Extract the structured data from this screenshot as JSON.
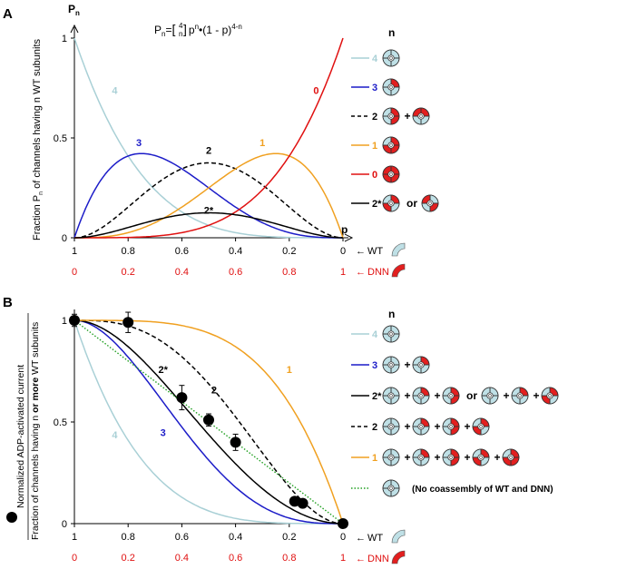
{
  "colors": {
    "c4": "#a9d0d6",
    "c3": "#1c1cc8",
    "c2": "#000000",
    "c1": "#f0a020",
    "c0": "#e01010",
    "c2star": "#000000",
    "green": "#22a022",
    "wt_fill": "#bfe0e6",
    "dnn_fill": "#e21f1f"
  },
  "panel_a": {
    "label": "A",
    "y_axis_symbol": "P",
    "y_axis_symbol_sub": "n",
    "ylabel": "Fraction P  of channels having n WT subunits",
    "ylabel_sub": "n",
    "formula_lhs": "P",
    "formula_sub": "n",
    "formula_eq": "=",
    "formula_binom_top": "4",
    "formula_binom_bottom": "n",
    "formula_p": "p",
    "formula_p_exp": "n",
    "formula_rest": "•(1 - p)",
    "formula_rest_exp": "4-n",
    "xlabel": "p",
    "legend_header": "n",
    "legend": [
      {
        "key": "4",
        "label": "4",
        "style": "solid",
        "color": "c4",
        "connectors": []
      },
      {
        "key": "3",
        "label": "3",
        "style": "solid",
        "color": "c3",
        "connectors": []
      },
      {
        "key": "2",
        "label": "2",
        "style": "dashed",
        "color": "c2",
        "connectors": [
          "+"
        ]
      },
      {
        "key": "1",
        "label": "1",
        "style": "solid",
        "color": "c1",
        "connectors": []
      },
      {
        "key": "0",
        "label": "0",
        "style": "solid",
        "color": "c0",
        "connectors": []
      },
      {
        "key": "2*",
        "label": "2*",
        "style": "solid",
        "color": "c2star",
        "connectors": [
          "or"
        ]
      }
    ]
  },
  "panel_b": {
    "label": "B",
    "ylabel_outer": "Normalized ADP-activated current",
    "ylabel_prefix": "Fraction of channels having n ",
    "ylabel_bold": "or more",
    "ylabel_suffix": " WT subunits",
    "legend_header": "n",
    "legend": [
      {
        "key": "4",
        "label": "4",
        "style": "solid",
        "color": "c4",
        "connectors": []
      },
      {
        "key": "3",
        "label": "3",
        "style": "solid",
        "color": "c3",
        "connectors": [
          "+"
        ]
      },
      {
        "key": "2*",
        "label": "2*",
        "style": "solid",
        "color": "c2star",
        "connectors": [
          "+",
          "+",
          "or",
          "+",
          "+"
        ]
      },
      {
        "key": "2",
        "label": "2",
        "style": "dashed",
        "color": "c2",
        "connectors": [
          "+",
          "+",
          "+"
        ]
      },
      {
        "key": "1",
        "label": "1",
        "style": "solid",
        "color": "c1",
        "connectors": [
          "+",
          "+",
          "+",
          "+"
        ]
      },
      {
        "key": "none",
        "label": "",
        "style": "dotted",
        "color": "green",
        "connectors": [],
        "note": "(No coassembly of WT and DNN)"
      }
    ]
  },
  "bottom_labels": {
    "wt": "WT",
    "dnn": "DNN",
    "arrow": "←"
  },
  "chart_data": [
    {
      "panel": "A",
      "type": "line",
      "xlabel": "p",
      "ylabel": "Fraction Pn of channels having n WT subunits",
      "xlim": [
        1,
        0
      ],
      "ylim": [
        0,
        1
      ],
      "x_ticks": [
        "1",
        "0.8",
        "0.6",
        "0.4",
        "0.2",
        "0"
      ],
      "x_ticks_dnn": [
        "0",
        "0.2",
        "0.4",
        "0.6",
        "0.8",
        "1"
      ],
      "y_ticks": [
        "0",
        "0.5",
        "1"
      ],
      "series": [
        {
          "name": "4",
          "label": "4",
          "color": "c4",
          "style": "solid",
          "x": [
            1,
            0.8,
            0.6,
            0.5,
            0.4,
            0.2,
            0
          ],
          "values": [
            1,
            0.41,
            0.13,
            0.06,
            0.03,
            0.0,
            0
          ]
        },
        {
          "name": "3",
          "label": "3",
          "color": "c3",
          "style": "solid",
          "x": [
            1,
            0.8,
            0.75,
            0.6,
            0.4,
            0.2,
            0
          ],
          "values": [
            0,
            0.41,
            0.42,
            0.35,
            0.15,
            0.03,
            0
          ]
        },
        {
          "name": "2",
          "label": "2",
          "color": "c2",
          "style": "dashed",
          "x": [
            1,
            0.8,
            0.6,
            0.5,
            0.4,
            0.2,
            0
          ],
          "values": [
            0,
            0.15,
            0.35,
            0.375,
            0.35,
            0.15,
            0
          ]
        },
        {
          "name": "1",
          "label": "1",
          "color": "c1",
          "style": "solid",
          "x": [
            1,
            0.8,
            0.6,
            0.4,
            0.25,
            0.2,
            0
          ],
          "values": [
            0,
            0.03,
            0.15,
            0.35,
            0.42,
            0.41,
            0
          ]
        },
        {
          "name": "0",
          "label": "0",
          "color": "c0",
          "style": "solid",
          "x": [
            1,
            0.8,
            0.6,
            0.4,
            0.2,
            0
          ],
          "values": [
            0,
            0.0,
            0.03,
            0.13,
            0.41,
            1
          ]
        },
        {
          "name": "2*",
          "label": "2*",
          "color": "c2star",
          "style": "solid",
          "x": [
            1,
            0.8,
            0.6,
            0.5,
            0.4,
            0.2,
            0
          ],
          "values": [
            0,
            0.08,
            0.17,
            0.19,
            0.17,
            0.08,
            0
          ]
        }
      ]
    },
    {
      "panel": "B",
      "type": "line",
      "xlabel": "",
      "ylabel": "Fraction of channels having n or more WT subunits",
      "xlim": [
        1,
        0
      ],
      "ylim": [
        0,
        1
      ],
      "x_ticks": [
        "1",
        "0.8",
        "0.6",
        "0.4",
        "0.2",
        "0"
      ],
      "x_ticks_dnn": [
        "0",
        "0.2",
        "0.4",
        "0.6",
        "0.8",
        "1"
      ],
      "y_ticks": [
        "0",
        "0.5",
        "1"
      ],
      "series": [
        {
          "name": "4",
          "label": "4",
          "color": "c4",
          "style": "solid",
          "x": [
            1,
            0.8,
            0.6,
            0.4,
            0.2,
            0
          ],
          "values": [
            1,
            0.41,
            0.13,
            0.03,
            0.0,
            0
          ]
        },
        {
          "name": "3",
          "label": "3",
          "color": "c3",
          "style": "solid",
          "x": [
            1,
            0.8,
            0.6,
            0.4,
            0.2,
            0
          ],
          "values": [
            1,
            0.82,
            0.48,
            0.18,
            0.03,
            0
          ]
        },
        {
          "name": "2*",
          "label": "2*",
          "color": "c2star",
          "style": "solid",
          "x": [
            1,
            0.8,
            0.6,
            0.5,
            0.4,
            0.2,
            0
          ],
          "values": [
            1,
            0.9,
            0.65,
            0.5,
            0.35,
            0.1,
            0
          ]
        },
        {
          "name": "2",
          "label": "2",
          "color": "c2",
          "style": "dashed",
          "x": [
            1,
            0.8,
            0.6,
            0.4,
            0.2,
            0
          ],
          "values": [
            1,
            0.97,
            0.82,
            0.52,
            0.18,
            0
          ]
        },
        {
          "name": "1",
          "label": "1",
          "color": "c1",
          "style": "solid",
          "x": [
            1,
            0.8,
            0.6,
            0.4,
            0.2,
            0
          ],
          "values": [
            1,
            1.0,
            0.97,
            0.87,
            0.59,
            0
          ]
        },
        {
          "name": "no-coassembly",
          "label": "",
          "color": "green",
          "style": "dotted",
          "x": [
            1,
            0
          ],
          "values": [
            1,
            0
          ]
        }
      ],
      "measured_points": {
        "name": "Normalized ADP-activated current",
        "x": [
          1,
          0.8,
          0.6,
          0.5,
          0.4,
          0.18,
          0.15,
          0
        ],
        "values": [
          1,
          0.99,
          0.62,
          0.51,
          0.4,
          0.11,
          0.1,
          0
        ],
        "errors": [
          0.03,
          0.05,
          0.06,
          0.03,
          0.04,
          0.02,
          0.02,
          0.01
        ]
      }
    }
  ]
}
